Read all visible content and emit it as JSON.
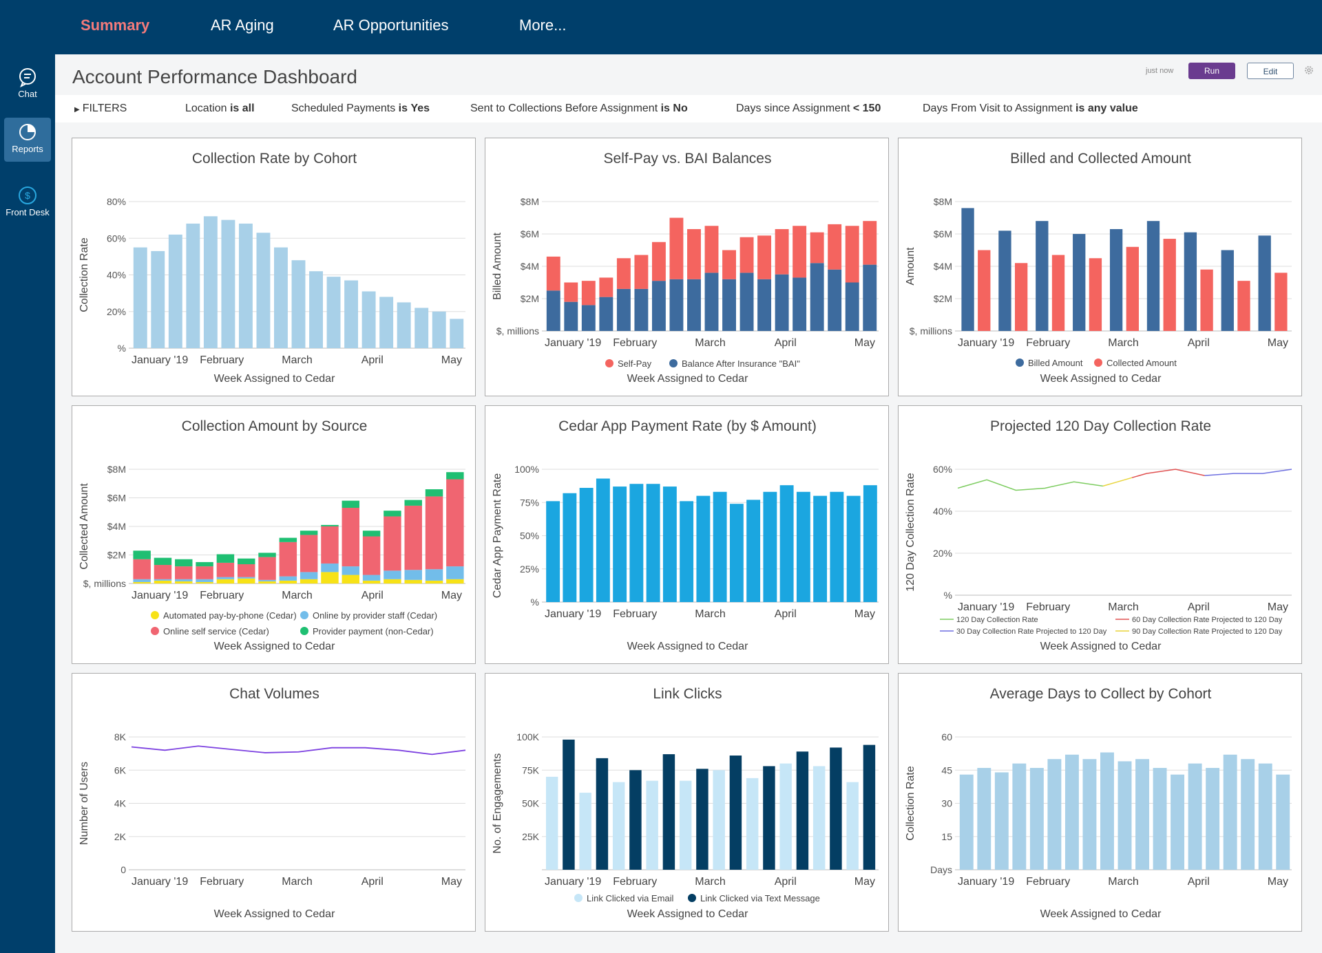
{
  "nav": {
    "tabs": [
      {
        "label": "Summary",
        "active": true
      },
      {
        "label": "AR Aging",
        "active": false
      },
      {
        "label": "AR Opportunities",
        "active": false
      },
      {
        "label": "More...",
        "active": false
      }
    ]
  },
  "sidebar": {
    "items": [
      {
        "label": "Chat",
        "icon": "chat-icon",
        "active": false
      },
      {
        "label": "Reports",
        "icon": "reports-icon",
        "active": true
      },
      {
        "label": "Front Desk",
        "icon": "dollar-icon",
        "active": false
      }
    ]
  },
  "header": {
    "title": "Account Performance Dashboard",
    "timestamp": "just now",
    "run_label": "Run",
    "edit_label": "Edit"
  },
  "filters": {
    "toggle_label": "FILTERS",
    "items": [
      {
        "name": "Location",
        "op": "is",
        "value": "all"
      },
      {
        "name": "Scheduled Payments",
        "op": "is",
        "value": "Yes"
      },
      {
        "name": "Sent to Collections Before Assignment",
        "op": "is",
        "value": "No"
      },
      {
        "name": "Days since Assignment",
        "op": "<",
        "value": "150"
      },
      {
        "name": "Days From Visit to Assignment",
        "op": "is",
        "value": "any value"
      }
    ]
  },
  "colors": {
    "light_blue": "#a8d0e8",
    "dark_blue": "#3d6b9e",
    "salmon": "#f4645f",
    "cyan": "#1ba6e0",
    "navy": "#043e63",
    "pale_blue": "#c6e6f7",
    "pink": "#f06571",
    "sky": "#72bdea",
    "yellow": "#f7e217",
    "green": "#1fbf72",
    "purple": "#7b3fe0"
  },
  "chart_data": [
    {
      "type": "bar",
      "title": "Collection Rate by Cohort",
      "xlabel": "Week Assigned to Cedar",
      "ylabel": "Collection Rate",
      "ylim": [
        0,
        80
      ],
      "yticks": [
        "%",
        "20%",
        "40%",
        "60%",
        "80%"
      ],
      "xtick_labels": [
        "January '19",
        "February",
        "March",
        "April",
        "May"
      ],
      "values": [
        55,
        53,
        62,
        68,
        72,
        70,
        68,
        63,
        55,
        48,
        42,
        39,
        37,
        31,
        28,
        25,
        22,
        20,
        16
      ],
      "grid": true
    },
    {
      "type": "bar",
      "stacked": true,
      "title": "Self-Pay vs. BAI Balances",
      "xlabel": "Week Assigned to Cedar",
      "ylabel": "Billed Amount",
      "ylim": [
        0,
        8
      ],
      "yticks": [
        "$, millions",
        "$2M",
        "$4M",
        "$6M",
        "$8M"
      ],
      "xtick_labels": [
        "January '19",
        "February",
        "March",
        "April",
        "May"
      ],
      "series": [
        {
          "name": "Balance After Insurance \"BAI\"",
          "values": [
            2.5,
            1.8,
            1.6,
            2.1,
            2.6,
            2.6,
            3.1,
            3.2,
            3.2,
            3.6,
            3.2,
            3.6,
            3.2,
            3.5,
            3.3,
            4.2,
            3.8,
            3.0,
            4.1
          ]
        },
        {
          "name": "Self-Pay",
          "values": [
            2.1,
            1.2,
            1.5,
            1.2,
            1.9,
            2.1,
            2.4,
            3.8,
            3.1,
            2.9,
            1.8,
            2.2,
            2.7,
            2.8,
            3.2,
            1.9,
            2.8,
            3.5,
            2.7
          ]
        }
      ],
      "grid": true,
      "legend": "bottom"
    },
    {
      "type": "bar",
      "title": "Billed and Collected Amount",
      "xlabel": "Week Assigned to Cedar",
      "ylabel": "Amount",
      "ylim": [
        0,
        8
      ],
      "yticks": [
        "$, millions",
        "$2M",
        "$4M",
        "$6M",
        "$8M"
      ],
      "xtick_labels": [
        "January '19",
        "February",
        "March",
        "April",
        "May"
      ],
      "series": [
        {
          "name": "Billed Amount",
          "values": [
            7.6,
            6.2,
            6.8,
            6.0,
            6.3,
            6.8,
            6.1,
            5.0,
            5.9
          ]
        },
        {
          "name": "Collected Amount",
          "values": [
            5.0,
            4.2,
            4.7,
            4.5,
            5.2,
            5.7,
            3.8,
            3.1,
            3.6
          ]
        }
      ],
      "grid": true,
      "legend": "bottom"
    },
    {
      "type": "bar",
      "stacked": true,
      "title": "Collection Amount by Source",
      "xlabel": "Week Assigned to Cedar",
      "ylabel": "Collected Amount",
      "ylim": [
        0,
        8
      ],
      "yticks": [
        "$, millions",
        "$2M",
        "$4M",
        "$6M",
        "$8M"
      ],
      "xtick_labels": [
        "January '19",
        "February",
        "March",
        "April",
        "May"
      ],
      "series": [
        {
          "name": "Automated pay-by-phone (Cedar)",
          "values": [
            0.1,
            0.2,
            0.15,
            0.1,
            0.3,
            0.35,
            0.15,
            0.2,
            0.3,
            0.8,
            0.6,
            0.2,
            0.3,
            0.25,
            0.2,
            0.3
          ]
        },
        {
          "name": "Online by provider staff (Cedar)",
          "values": [
            0.2,
            0.1,
            0.15,
            0.2,
            0.15,
            0.1,
            0.1,
            0.3,
            0.5,
            0.6,
            0.6,
            0.4,
            0.6,
            0.7,
            0.8,
            0.9
          ]
        },
        {
          "name": "Online self service (Cedar)",
          "values": [
            1.4,
            1.0,
            0.9,
            0.9,
            1.0,
            0.9,
            1.6,
            2.4,
            2.6,
            2.6,
            4.1,
            2.7,
            3.8,
            4.5,
            5.1,
            6.1
          ]
        },
        {
          "name": "Provider payment (non-Cedar)",
          "values": [
            0.6,
            0.5,
            0.5,
            0.3,
            0.6,
            0.4,
            0.3,
            0.3,
            0.3,
            0.1,
            0.5,
            0.4,
            0.4,
            0.4,
            0.5,
            0.5
          ]
        }
      ],
      "grid": true,
      "legend": "bottom"
    },
    {
      "type": "bar",
      "title": "Cedar App Payment Rate (by $ Amount)",
      "xlabel": "Week Assigned to Cedar",
      "ylabel": "Cedar App Payment Rate",
      "ylim": [
        0,
        100
      ],
      "yticks": [
        "%",
        "25%",
        "50%",
        "75%",
        "100%"
      ],
      "xtick_labels": [
        "January '19",
        "February",
        "March",
        "April",
        "May"
      ],
      "values": [
        76,
        82,
        86,
        93,
        87,
        89,
        89,
        87,
        76,
        80,
        83,
        74,
        77,
        83,
        88,
        83,
        80,
        83,
        80,
        88
      ],
      "grid": true
    },
    {
      "type": "line",
      "title": "Projected 120 Day Collection Rate",
      "xlabel": "Week Assigned to Cedar",
      "ylabel": "120 Day Collection Rate",
      "ylim": [
        0,
        60
      ],
      "yticks": [
        "%",
        "20%",
        "40%",
        "60%"
      ],
      "xtick_labels": [
        "January '19",
        "February",
        "March",
        "April",
        "May"
      ],
      "series": [
        {
          "name": "120 Day Collection Rate",
          "x": [
            0,
            2,
            4,
            6,
            8,
            10
          ],
          "values": [
            51,
            55,
            50,
            51,
            54,
            52
          ]
        },
        {
          "name": "90 Day Collection Rate Projected to 120 Day",
          "x": [
            10,
            11,
            12
          ],
          "values": [
            52,
            54,
            56
          ]
        },
        {
          "name": "60 Day Collection Rate Projected to 120 Day",
          "x": [
            12,
            13,
            15,
            17
          ],
          "values": [
            56,
            58,
            60,
            57
          ]
        },
        {
          "name": "30 Day Collection Rate Projected to 120 Day",
          "x": [
            17,
            19,
            21,
            23
          ],
          "values": [
            57,
            58,
            58,
            60
          ]
        }
      ],
      "grid": true,
      "legend": "bottom"
    },
    {
      "type": "line",
      "title": "Chat Volumes",
      "xlabel": "Week Assigned to Cedar",
      "ylabel": "Number of Users",
      "ylim": [
        0,
        8000
      ],
      "yticks": [
        "0",
        "2K",
        "4K",
        "6K",
        "8K"
      ],
      "xtick_labels": [
        "January '19",
        "February",
        "March",
        "April",
        "May"
      ],
      "values": [
        7400,
        7200,
        7450,
        7250,
        7050,
        7100,
        7350,
        7350,
        7200,
        6950,
        7200
      ],
      "grid": true
    },
    {
      "type": "bar",
      "title": "Link Clicks",
      "xlabel": "Week Assigned to Cedar",
      "ylabel": "No. of Engagements",
      "ylim": [
        0,
        100000
      ],
      "yticks": [
        "",
        "25K",
        "50K",
        "75K",
        "100K"
      ],
      "xtick_labels": [
        "January '19",
        "February",
        "March",
        "April",
        "May"
      ],
      "series": [
        {
          "name": "Link Clicked via Email",
          "values": [
            70000,
            58000,
            66000,
            67000,
            67000,
            75000,
            69000,
            80000,
            78000,
            66000
          ]
        },
        {
          "name": "Link Clicked via Text Message",
          "values": [
            98000,
            84000,
            75000,
            87000,
            76000,
            86000,
            78000,
            89000,
            92000,
            94000
          ]
        }
      ],
      "grid": true,
      "legend": "bottom"
    },
    {
      "type": "bar",
      "title": "Average Days to Collect by Cohort",
      "xlabel": "Week Assigned to Cedar",
      "ylabel": "Collection Rate",
      "ylim": [
        0,
        60
      ],
      "yticks": [
        "Days",
        "15",
        "30",
        "45",
        "60"
      ],
      "xtick_labels": [
        "January '19",
        "February",
        "March",
        "April",
        "May"
      ],
      "values": [
        43,
        46,
        44,
        48,
        46,
        50,
        52,
        50,
        53,
        49,
        50,
        46,
        43,
        48,
        46,
        52,
        50,
        48,
        43
      ],
      "grid": true
    }
  ]
}
